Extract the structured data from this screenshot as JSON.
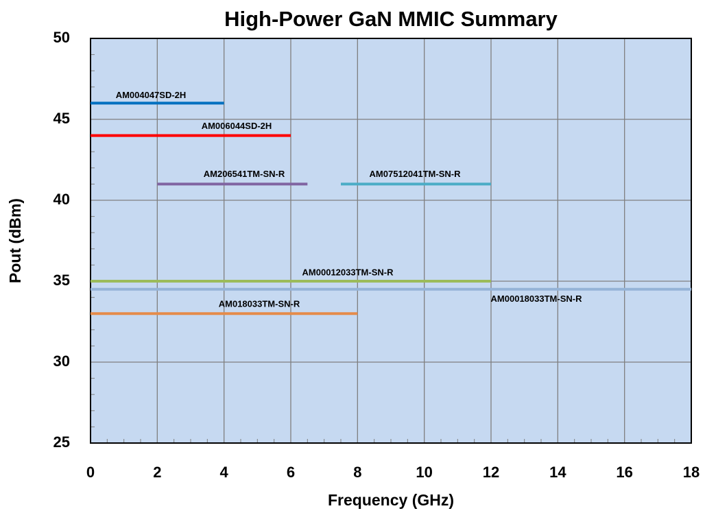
{
  "chart_data": {
    "type": "line",
    "title": "High-Power GaN MMIC Summary",
    "x_label": "Frequency (GHz)",
    "y_label": "Pout (dBm)",
    "xlim": [
      0,
      18
    ],
    "xticks": [
      0,
      2,
      4,
      6,
      8,
      10,
      12,
      14,
      16,
      18
    ],
    "ylim": [
      25,
      50
    ],
    "yticks": [
      25,
      30,
      35,
      40,
      45,
      50
    ],
    "grid": true,
    "background": "#c6d9f1",
    "series": [
      {
        "name": "AM004047SD-2H",
        "color": "#0070c0",
        "x": [
          0,
          4
        ],
        "values": [
          46,
          46
        ]
      },
      {
        "name": "AM006044SD-2H",
        "color": "#ff0000",
        "x": [
          0,
          6
        ],
        "values": [
          44,
          44
        ]
      },
      {
        "name": "AM206541TM-SN-R",
        "color": "#8064a2",
        "x": [
          2,
          6.5
        ],
        "values": [
          41,
          41
        ]
      },
      {
        "name": "AM07512041TM-SN-R",
        "color": "#4bacc6",
        "x": [
          7.5,
          12
        ],
        "values": [
          41,
          41
        ]
      },
      {
        "name": "AM00012033TM-SN-R",
        "color": "#9bbb59",
        "x": [
          0,
          12
        ],
        "values": [
          35,
          35
        ]
      },
      {
        "name": "AM00018033TM-SN-R",
        "color": "#95b3d7",
        "x": [
          0,
          18
        ],
        "values": [
          34.5,
          34.5
        ]
      },
      {
        "name": "AM018033TM-SN-R",
        "color": "#e58b4a",
        "x": [
          0,
          8
        ],
        "values": [
          33,
          33
        ]
      }
    ]
  }
}
